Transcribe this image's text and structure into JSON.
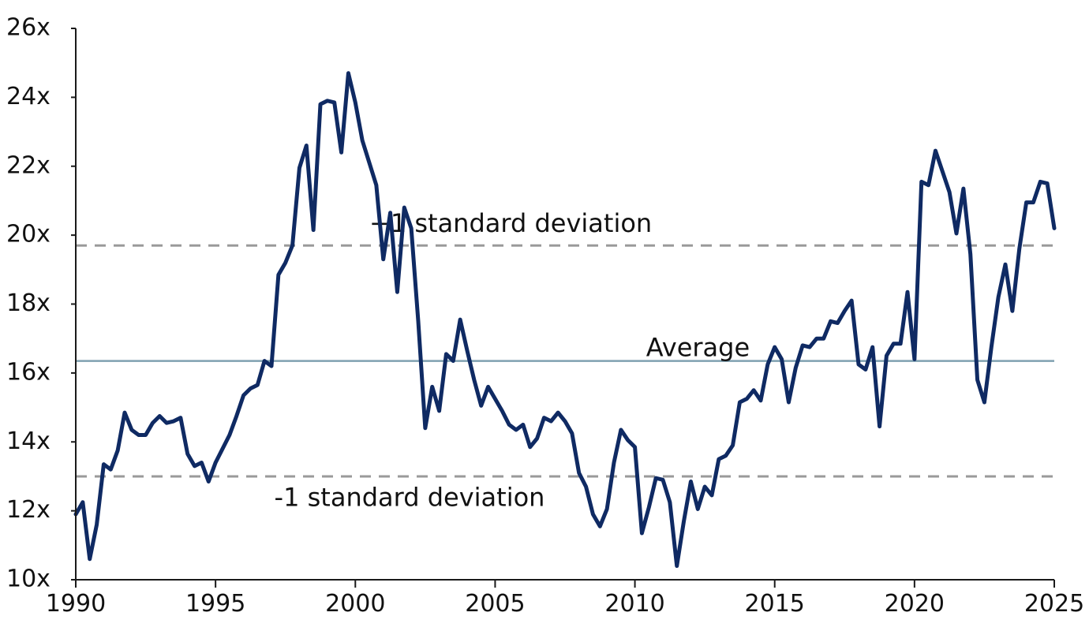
{
  "chart_data": {
    "type": "line",
    "title": "",
    "xlabel": "",
    "ylabel": "",
    "xlim": [
      1990,
      2025
    ],
    "ylim": [
      10,
      26
    ],
    "x_ticks": [
      1990,
      1995,
      2000,
      2005,
      2010,
      2015,
      2020,
      2025
    ],
    "x_tick_labels": [
      "1990",
      "1995",
      "2000",
      "2005",
      "2010",
      "2015",
      "2020",
      "2025"
    ],
    "y_ticks": [
      10,
      12,
      14,
      16,
      18,
      20,
      22,
      24,
      26
    ],
    "y_tick_labels": [
      "10x",
      "12x",
      "14x",
      "16x",
      "18x",
      "20x",
      "22x",
      "24x",
      "26x"
    ],
    "grid": false,
    "reference_lines": [
      {
        "label": "+1 standard deviation",
        "value": 19.7,
        "style": "dashed",
        "color": "#9a9a9a",
        "label_x": 2000.5,
        "label_y": 20.3
      },
      {
        "label": "Average",
        "value": 16.35,
        "style": "solid",
        "color": "#7fa1b1",
        "label_x": 2010.4,
        "label_y": 16.7
      },
      {
        "label": "-1 standard deviation",
        "value": 13.0,
        "style": "dashed",
        "color": "#9a9a9a",
        "label_x": 1997.1,
        "label_y": 12.35
      }
    ],
    "series": [
      {
        "color": "#0f2a63",
        "points": [
          [
            1990.0,
            11.9
          ],
          [
            1990.25,
            12.25
          ],
          [
            1990.5,
            10.6
          ],
          [
            1990.75,
            11.6
          ],
          [
            1991.0,
            13.35
          ],
          [
            1991.25,
            13.2
          ],
          [
            1991.5,
            13.75
          ],
          [
            1991.75,
            14.85
          ],
          [
            1992.0,
            14.35
          ],
          [
            1992.25,
            14.2
          ],
          [
            1992.5,
            14.2
          ],
          [
            1992.75,
            14.55
          ],
          [
            1993.0,
            14.75
          ],
          [
            1993.25,
            14.55
          ],
          [
            1993.5,
            14.6
          ],
          [
            1993.75,
            14.7
          ],
          [
            1994.0,
            13.65
          ],
          [
            1994.25,
            13.3
          ],
          [
            1994.5,
            13.4
          ],
          [
            1994.75,
            12.85
          ],
          [
            1995.0,
            13.4
          ],
          [
            1995.25,
            13.8
          ],
          [
            1995.5,
            14.2
          ],
          [
            1995.75,
            14.75
          ],
          [
            1996.0,
            15.35
          ],
          [
            1996.25,
            15.55
          ],
          [
            1996.5,
            15.65
          ],
          [
            1996.75,
            16.35
          ],
          [
            1997.0,
            16.2
          ],
          [
            1997.25,
            18.85
          ],
          [
            1997.5,
            19.2
          ],
          [
            1997.75,
            19.7
          ],
          [
            1998.0,
            21.95
          ],
          [
            1998.25,
            22.6
          ],
          [
            1998.5,
            20.15
          ],
          [
            1998.75,
            23.8
          ],
          [
            1999.0,
            23.9
          ],
          [
            1999.25,
            23.85
          ],
          [
            1999.5,
            22.4
          ],
          [
            1999.75,
            24.7
          ],
          [
            2000.0,
            23.85
          ],
          [
            2000.25,
            22.75
          ],
          [
            2000.5,
            22.1
          ],
          [
            2000.75,
            21.45
          ],
          [
            2001.0,
            19.3
          ],
          [
            2001.25,
            20.65
          ],
          [
            2001.5,
            18.35
          ],
          [
            2001.75,
            20.8
          ],
          [
            2002.0,
            20.2
          ],
          [
            2002.25,
            17.5
          ],
          [
            2002.5,
            14.4
          ],
          [
            2002.75,
            15.6
          ],
          [
            2003.0,
            14.9
          ],
          [
            2003.25,
            16.55
          ],
          [
            2003.5,
            16.35
          ],
          [
            2003.75,
            17.55
          ],
          [
            2004.0,
            16.65
          ],
          [
            2004.25,
            15.8
          ],
          [
            2004.5,
            15.05
          ],
          [
            2004.75,
            15.6
          ],
          [
            2005.0,
            15.25
          ],
          [
            2005.25,
            14.9
          ],
          [
            2005.5,
            14.5
          ],
          [
            2005.75,
            14.35
          ],
          [
            2006.0,
            14.5
          ],
          [
            2006.25,
            13.85
          ],
          [
            2006.5,
            14.1
          ],
          [
            2006.75,
            14.7
          ],
          [
            2007.0,
            14.6
          ],
          [
            2007.25,
            14.85
          ],
          [
            2007.5,
            14.6
          ],
          [
            2007.75,
            14.25
          ],
          [
            2008.0,
            13.1
          ],
          [
            2008.25,
            12.7
          ],
          [
            2008.5,
            11.9
          ],
          [
            2008.75,
            11.55
          ],
          [
            2009.0,
            12.05
          ],
          [
            2009.25,
            13.4
          ],
          [
            2009.5,
            14.35
          ],
          [
            2009.75,
            14.05
          ],
          [
            2010.0,
            13.85
          ],
          [
            2010.25,
            11.35
          ],
          [
            2010.5,
            12.1
          ],
          [
            2010.75,
            12.95
          ],
          [
            2011.0,
            12.9
          ],
          [
            2011.25,
            12.25
          ],
          [
            2011.5,
            10.4
          ],
          [
            2011.75,
            11.7
          ],
          [
            2012.0,
            12.85
          ],
          [
            2012.25,
            12.05
          ],
          [
            2012.5,
            12.7
          ],
          [
            2012.75,
            12.45
          ],
          [
            2013.0,
            13.5
          ],
          [
            2013.25,
            13.6
          ],
          [
            2013.5,
            13.9
          ],
          [
            2013.75,
            15.15
          ],
          [
            2014.0,
            15.25
          ],
          [
            2014.25,
            15.5
          ],
          [
            2014.5,
            15.2
          ],
          [
            2014.75,
            16.25
          ],
          [
            2015.0,
            16.75
          ],
          [
            2015.25,
            16.4
          ],
          [
            2015.5,
            15.15
          ],
          [
            2015.75,
            16.15
          ],
          [
            2016.0,
            16.8
          ],
          [
            2016.25,
            16.75
          ],
          [
            2016.5,
            17.0
          ],
          [
            2016.75,
            17.0
          ],
          [
            2017.0,
            17.5
          ],
          [
            2017.25,
            17.45
          ],
          [
            2017.5,
            17.8
          ],
          [
            2017.75,
            18.1
          ],
          [
            2018.0,
            16.25
          ],
          [
            2018.25,
            16.1
          ],
          [
            2018.5,
            16.75
          ],
          [
            2018.75,
            14.45
          ],
          [
            2019.0,
            16.5
          ],
          [
            2019.25,
            16.85
          ],
          [
            2019.5,
            16.85
          ],
          [
            2019.75,
            18.35
          ],
          [
            2020.0,
            16.4
          ],
          [
            2020.25,
            21.55
          ],
          [
            2020.5,
            21.45
          ],
          [
            2020.75,
            22.45
          ],
          [
            2021.0,
            21.85
          ],
          [
            2021.25,
            21.25
          ],
          [
            2021.5,
            20.05
          ],
          [
            2021.75,
            21.35
          ],
          [
            2022.0,
            19.45
          ],
          [
            2022.25,
            15.8
          ],
          [
            2022.5,
            15.15
          ],
          [
            2022.75,
            16.75
          ],
          [
            2023.0,
            18.2
          ],
          [
            2023.25,
            19.15
          ],
          [
            2023.5,
            17.8
          ],
          [
            2023.75,
            19.6
          ],
          [
            2024.0,
            20.95
          ],
          [
            2024.25,
            20.95
          ],
          [
            2024.5,
            21.55
          ],
          [
            2024.75,
            21.5
          ],
          [
            2025.0,
            20.2
          ]
        ]
      }
    ]
  }
}
